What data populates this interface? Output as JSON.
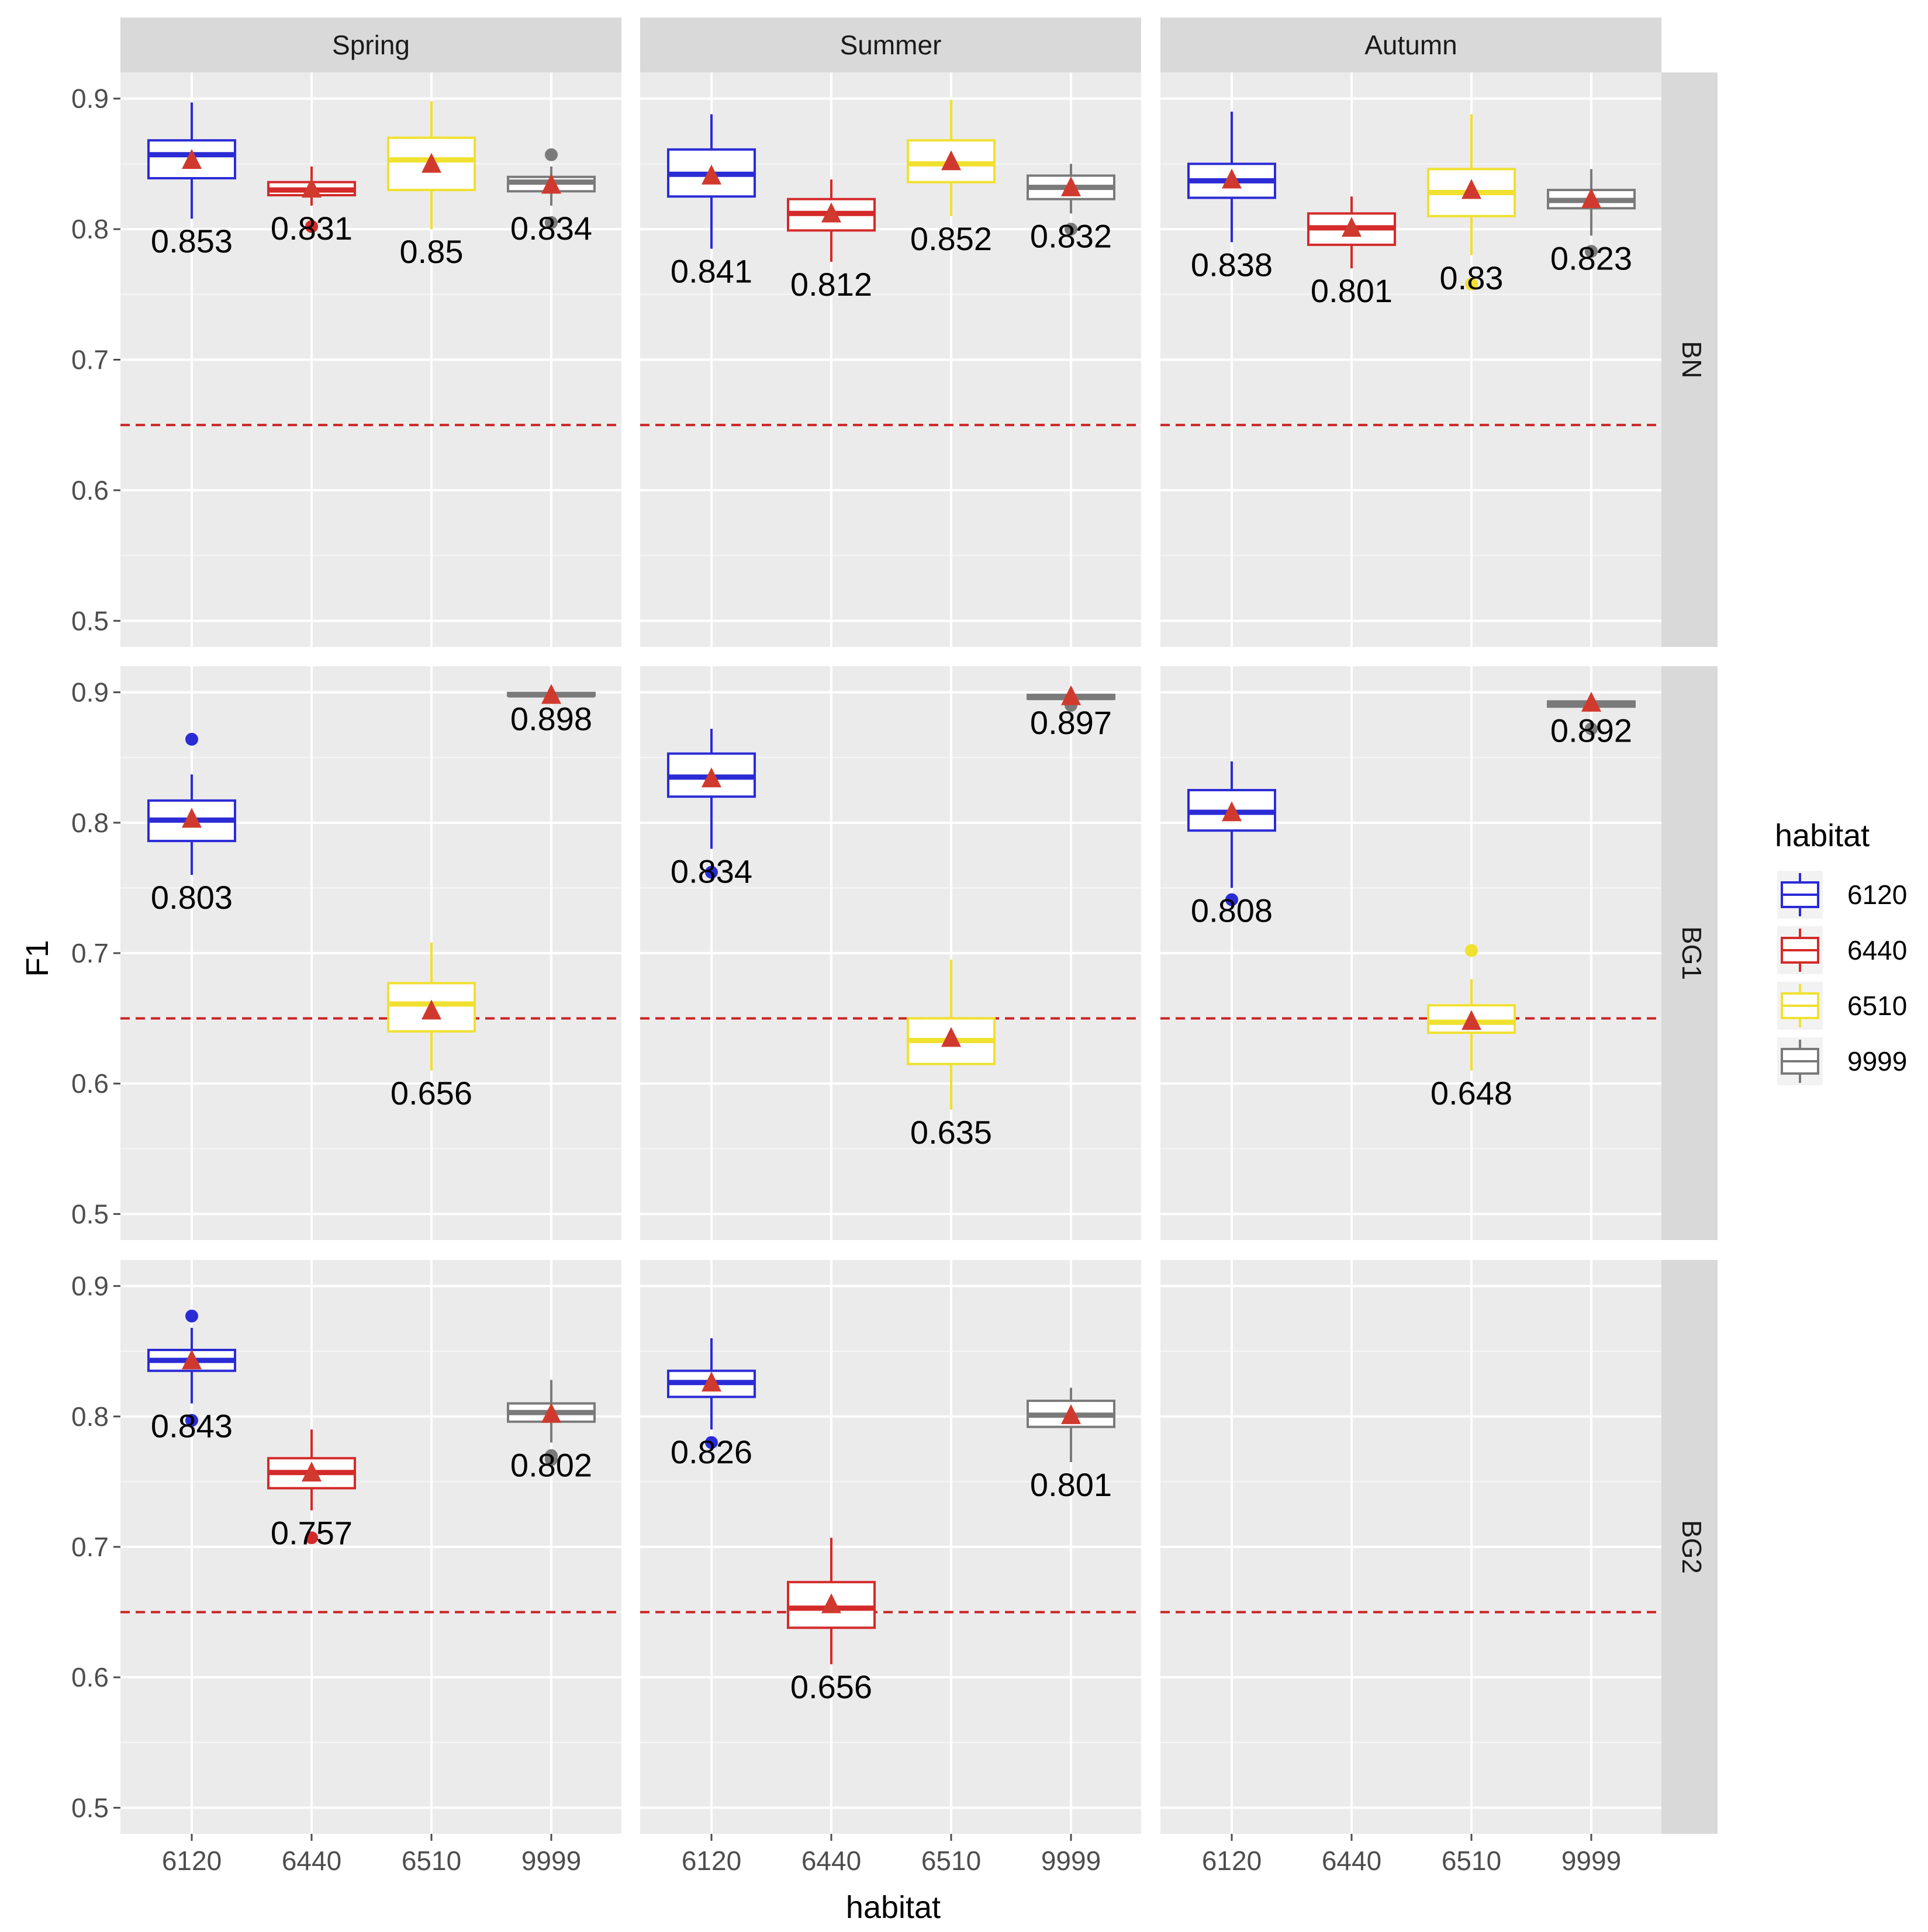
{
  "chart_data": {
    "type": "box",
    "xlabel": "habitat",
    "ylabel": "F1",
    "ylim": [
      0.48,
      0.92
    ],
    "yticks": [
      0.5,
      0.6,
      0.7,
      0.8,
      0.9
    ],
    "ytick_labels": [
      "0.5",
      "0.6",
      "0.7",
      "0.8",
      "0.9"
    ],
    "categories": [
      "6120",
      "6440",
      "6510",
      "9999"
    ],
    "column_facets": [
      "Spring",
      "Summer",
      "Autumn"
    ],
    "row_facets": [
      "BN",
      "BG1",
      "BG2"
    ],
    "threshold": 0.65,
    "colors": {
      "6120": "#2b2bd6",
      "6440": "#d42a2a",
      "6510": "#f0e130",
      "9999": "#7a7a7a",
      "mean_marker": "#d03a2e",
      "threshold_line": "#cc2222",
      "panel_bg": "#ebebeb",
      "strip_bg": "#d9d9d9"
    },
    "legend": {
      "title": "habitat",
      "entries": [
        "6120",
        "6440",
        "6510",
        "9999"
      ]
    },
    "panels": [
      {
        "row": "BN",
        "col": "Spring",
        "boxes": [
          {
            "cat": "6120",
            "min": 0.808,
            "q1": 0.839,
            "median": 0.857,
            "q3": 0.868,
            "max": 0.897,
            "mean": 0.853,
            "label": "0.853",
            "outliers": []
          },
          {
            "cat": "6440",
            "min": 0.818,
            "q1": 0.826,
            "median": 0.83,
            "q3": 0.836,
            "max": 0.848,
            "mean": 0.831,
            "label": "0.831",
            "outliers": [
              0.802
            ]
          },
          {
            "cat": "6510",
            "min": 0.8,
            "q1": 0.83,
            "median": 0.853,
            "q3": 0.87,
            "max": 0.898,
            "mean": 0.85,
            "label": "0.85",
            "outliers": []
          },
          {
            "cat": "9999",
            "min": 0.818,
            "q1": 0.829,
            "median": 0.836,
            "q3": 0.84,
            "max": 0.848,
            "mean": 0.834,
            "label": "0.834",
            "outliers": [
              0.857,
              0.805
            ]
          }
        ]
      },
      {
        "row": "BN",
        "col": "Summer",
        "boxes": [
          {
            "cat": "6120",
            "min": 0.785,
            "q1": 0.825,
            "median": 0.842,
            "q3": 0.861,
            "max": 0.888,
            "mean": 0.841,
            "label": "0.841",
            "outliers": []
          },
          {
            "cat": "6440",
            "min": 0.775,
            "q1": 0.799,
            "median": 0.812,
            "q3": 0.823,
            "max": 0.838,
            "mean": 0.812,
            "label": "0.812",
            "outliers": []
          },
          {
            "cat": "6510",
            "min": 0.81,
            "q1": 0.836,
            "median": 0.85,
            "q3": 0.868,
            "max": 0.899,
            "mean": 0.852,
            "label": "0.852",
            "outliers": []
          },
          {
            "cat": "9999",
            "min": 0.812,
            "q1": 0.823,
            "median": 0.832,
            "q3": 0.841,
            "max": 0.85,
            "mean": 0.832,
            "label": "0.832",
            "outliers": [
              0.8
            ]
          }
        ]
      },
      {
        "row": "BN",
        "col": "Autumn",
        "boxes": [
          {
            "cat": "6120",
            "min": 0.79,
            "q1": 0.824,
            "median": 0.837,
            "q3": 0.85,
            "max": 0.89,
            "mean": 0.838,
            "label": "0.838",
            "outliers": []
          },
          {
            "cat": "6440",
            "min": 0.77,
            "q1": 0.788,
            "median": 0.801,
            "q3": 0.812,
            "max": 0.825,
            "mean": 0.801,
            "label": "0.801",
            "outliers": []
          },
          {
            "cat": "6510",
            "min": 0.78,
            "q1": 0.81,
            "median": 0.828,
            "q3": 0.846,
            "max": 0.888,
            "mean": 0.83,
            "label": "0.83",
            "outliers": [
              0.758
            ]
          },
          {
            "cat": "9999",
            "min": 0.795,
            "q1": 0.816,
            "median": 0.822,
            "q3": 0.83,
            "max": 0.846,
            "mean": 0.823,
            "label": "0.823",
            "outliers": [
              0.783
            ]
          }
        ]
      },
      {
        "row": "BG1",
        "col": "Spring",
        "boxes": [
          {
            "cat": "6120",
            "min": 0.76,
            "q1": 0.786,
            "median": 0.802,
            "q3": 0.817,
            "max": 0.837,
            "mean": 0.803,
            "label": "0.803",
            "outliers": [
              0.864
            ]
          },
          {
            "cat": "6510",
            "min": 0.61,
            "q1": 0.64,
            "median": 0.661,
            "q3": 0.677,
            "max": 0.708,
            "mean": 0.656,
            "label": "0.656",
            "outliers": []
          },
          {
            "cat": "9999",
            "min": 0.897,
            "q1": 0.8975,
            "median": 0.898,
            "q3": 0.8995,
            "max": 0.9,
            "mean": 0.898,
            "label": "0.898",
            "outliers": []
          }
        ]
      },
      {
        "row": "BG1",
        "col": "Summer",
        "boxes": [
          {
            "cat": "6120",
            "min": 0.78,
            "q1": 0.82,
            "median": 0.835,
            "q3": 0.853,
            "max": 0.872,
            "mean": 0.834,
            "label": "0.834",
            "outliers": [
              0.762
            ]
          },
          {
            "cat": "6510",
            "min": 0.58,
            "q1": 0.615,
            "median": 0.633,
            "q3": 0.65,
            "max": 0.695,
            "mean": 0.635,
            "label": "0.635",
            "outliers": []
          },
          {
            "cat": "9999",
            "min": 0.894,
            "q1": 0.895,
            "median": 0.896,
            "q3": 0.898,
            "max": 0.899,
            "mean": 0.897,
            "label": "0.897",
            "outliers": [
              0.89
            ]
          }
        ]
      },
      {
        "row": "BG1",
        "col": "Autumn",
        "boxes": [
          {
            "cat": "6120",
            "min": 0.75,
            "q1": 0.794,
            "median": 0.808,
            "q3": 0.825,
            "max": 0.847,
            "mean": 0.808,
            "label": "0.808",
            "outliers": [
              0.741
            ]
          },
          {
            "cat": "6510",
            "min": 0.61,
            "q1": 0.639,
            "median": 0.647,
            "q3": 0.66,
            "max": 0.68,
            "mean": 0.648,
            "label": "0.648",
            "outliers": [
              0.702
            ]
          },
          {
            "cat": "9999",
            "min": 0.888,
            "q1": 0.889,
            "median": 0.891,
            "q3": 0.893,
            "max": 0.895,
            "mean": 0.892,
            "label": "0.892",
            "outliers": [
              0.872
            ]
          }
        ]
      },
      {
        "row": "BG2",
        "col": "Spring",
        "boxes": [
          {
            "cat": "6120",
            "min": 0.81,
            "q1": 0.835,
            "median": 0.843,
            "q3": 0.851,
            "max": 0.868,
            "mean": 0.843,
            "label": "0.843",
            "outliers": [
              0.877,
              0.797
            ]
          },
          {
            "cat": "6440",
            "min": 0.728,
            "q1": 0.745,
            "median": 0.757,
            "q3": 0.768,
            "max": 0.79,
            "mean": 0.757,
            "label": "0.757",
            "outliers": [
              0.707
            ]
          },
          {
            "cat": "9999",
            "min": 0.78,
            "q1": 0.796,
            "median": 0.803,
            "q3": 0.81,
            "max": 0.828,
            "mean": 0.802,
            "label": "0.802",
            "outliers": [
              0.77,
              0.767
            ]
          }
        ]
      },
      {
        "row": "BG2",
        "col": "Summer",
        "boxes": [
          {
            "cat": "6120",
            "min": 0.79,
            "q1": 0.815,
            "median": 0.826,
            "q3": 0.835,
            "max": 0.86,
            "mean": 0.826,
            "label": "0.826",
            "outliers": [
              0.78
            ]
          },
          {
            "cat": "6440",
            "min": 0.61,
            "q1": 0.638,
            "median": 0.653,
            "q3": 0.673,
            "max": 0.707,
            "mean": 0.656,
            "label": "0.656",
            "outliers": []
          },
          {
            "cat": "9999",
            "min": 0.765,
            "q1": 0.792,
            "median": 0.801,
            "q3": 0.812,
            "max": 0.822,
            "mean": 0.801,
            "label": "0.801",
            "outliers": []
          }
        ]
      },
      {
        "row": "BG2",
        "col": "Autumn",
        "boxes": []
      }
    ]
  }
}
